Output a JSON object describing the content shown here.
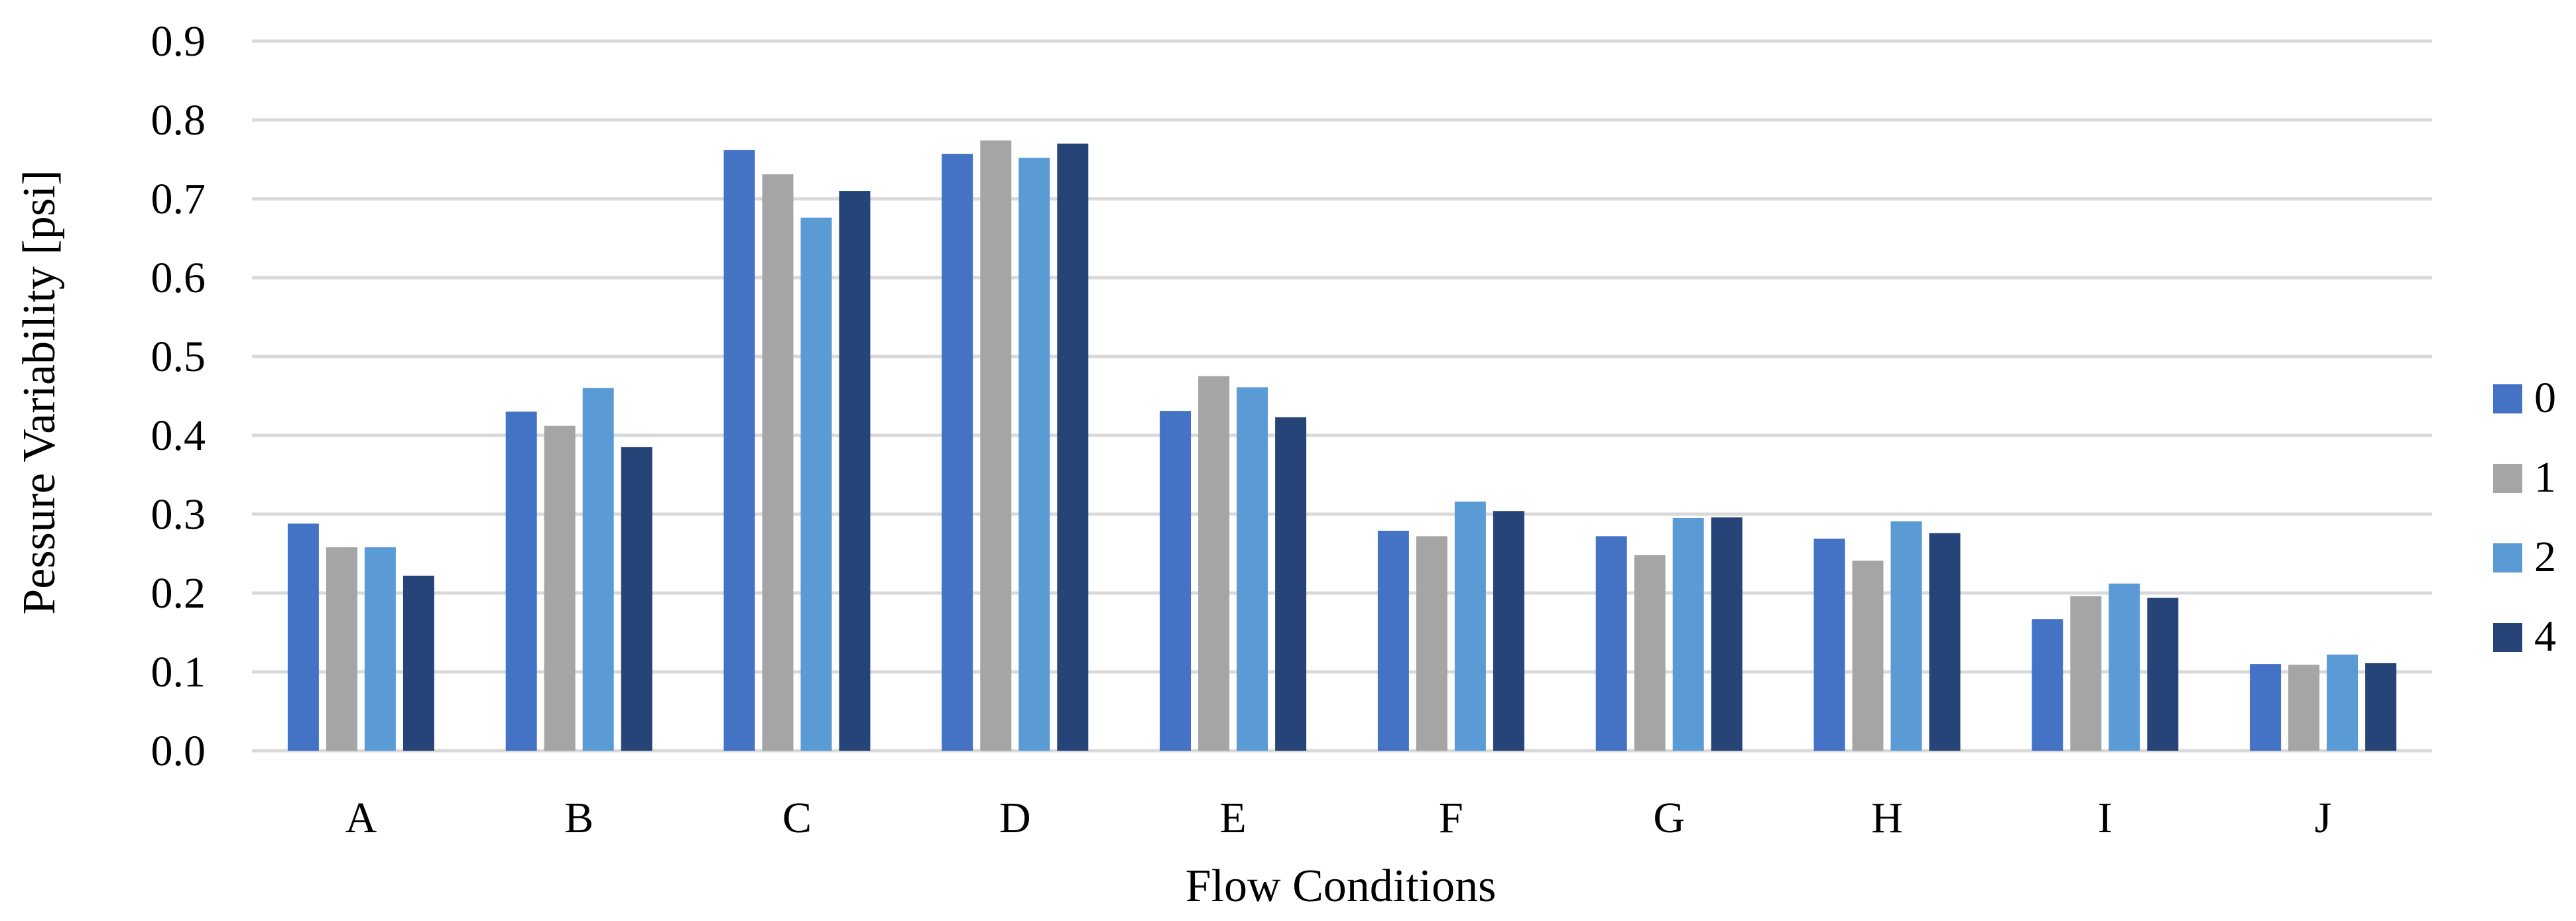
{
  "chart_data": {
    "type": "bar",
    "title": "",
    "xlabel": "Flow Conditions",
    "ylabel": "Pessure Variability [psi]",
    "ylim": [
      0,
      0.9
    ],
    "y_ticks": [
      "0.0",
      "0.1",
      "0.2",
      "0.3",
      "0.4",
      "0.5",
      "0.6",
      "0.7",
      "0.8",
      "0.9"
    ],
    "grid": true,
    "legend_position": "right",
    "categories": [
      "A",
      "B",
      "C",
      "D",
      "E",
      "F",
      "G",
      "H",
      "I",
      "J"
    ],
    "series": [
      {
        "name": "0",
        "color": "#4472c4",
        "values": [
          0.288,
          0.43,
          0.762,
          0.757,
          0.431,
          0.279,
          0.272,
          0.269,
          0.167,
          0.11
        ]
      },
      {
        "name": "1",
        "color": "#a5a5a5",
        "values": [
          0.258,
          0.412,
          0.731,
          0.774,
          0.475,
          0.272,
          0.248,
          0.241,
          0.196,
          0.109
        ]
      },
      {
        "name": "2",
        "color": "#5b9bd5",
        "values": [
          0.258,
          0.46,
          0.676,
          0.752,
          0.461,
          0.316,
          0.295,
          0.291,
          0.212,
          0.122
        ]
      },
      {
        "name": "4",
        "color": "#264478",
        "values": [
          0.222,
          0.385,
          0.71,
          0.77,
          0.423,
          0.304,
          0.296,
          0.276,
          0.194,
          0.111
        ]
      }
    ]
  }
}
